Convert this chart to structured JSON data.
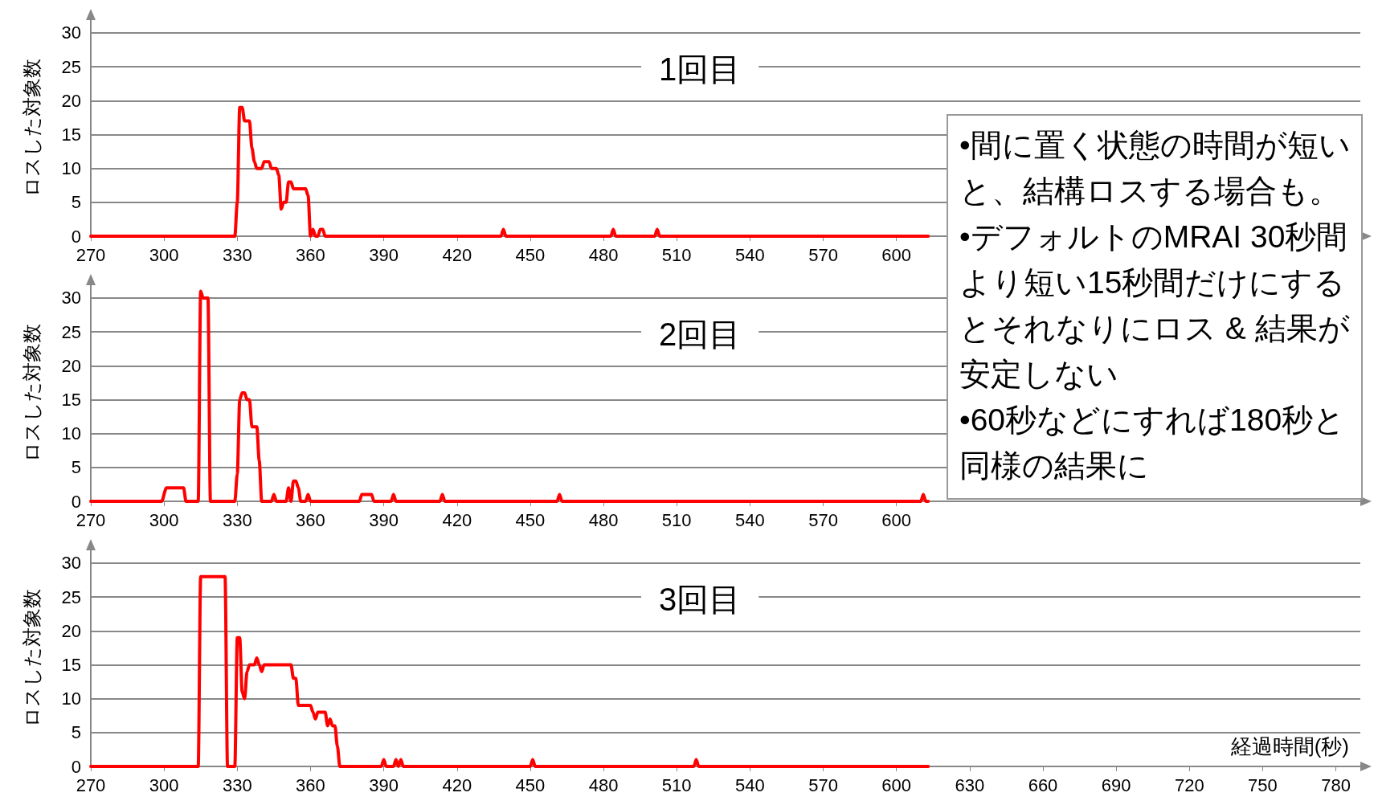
{
  "chart_data": [
    {
      "type": "line",
      "title": "1回目",
      "ylabel": "ロスした対象数",
      "color": "#ff0000",
      "marker": "none",
      "line_style": "solid",
      "grid": "y",
      "x": [
        270,
        329,
        330,
        331,
        332,
        333,
        335,
        336,
        337,
        338,
        340,
        341,
        343,
        344,
        346,
        347,
        348,
        349,
        350,
        351,
        352,
        353,
        358,
        359,
        360,
        361,
        362,
        363,
        364,
        365,
        366,
        438,
        439,
        440,
        483,
        484,
        485,
        501,
        502,
        503,
        613
      ],
      "values": [
        0,
        0,
        5,
        19,
        19,
        17,
        17,
        13,
        11,
        10,
        10,
        11,
        11,
        10,
        10,
        9,
        4,
        5,
        5,
        8,
        8,
        7,
        7,
        6,
        0,
        1,
        0,
        0,
        1,
        1,
        0,
        0,
        1,
        0,
        0,
        1,
        0,
        0,
        1,
        0,
        0
      ],
      "xlim": [
        270,
        790
      ],
      "ylim": [
        0,
        32
      ],
      "xticks": [
        270,
        300,
        330,
        360,
        390,
        420,
        450,
        480,
        510,
        540,
        570,
        600
      ],
      "yticks": [
        0,
        5,
        10,
        15,
        20,
        25,
        30
      ],
      "annotations": [
        "•間に置く状態の時間が短いと、結構ロスする場合も。",
        "•デフォルトのMRAI 30秒間より短い15秒間だけにするとそれなりにロス & 結果が安定しない",
        "•60秒などにすれば180秒と同様の結果に"
      ]
    },
    {
      "type": "line",
      "title": "2回目",
      "ylabel": "ロスした対象数",
      "color": "#ff0000",
      "marker": "none",
      "line_style": "solid",
      "grid": "y",
      "x": [
        270,
        299,
        301,
        307,
        308,
        309,
        314,
        315,
        316,
        318,
        319,
        329,
        330,
        331,
        332,
        333,
        334,
        335,
        336,
        338,
        339,
        340,
        344,
        345,
        346,
        350,
        351,
        352,
        353,
        354,
        355,
        356,
        358,
        359,
        360,
        380,
        381,
        385,
        386,
        393,
        394,
        395,
        413,
        414,
        415,
        461,
        462,
        463,
        610,
        611,
        612,
        613
      ],
      "values": [
        0,
        0,
        2,
        2,
        2,
        0,
        0,
        31,
        30,
        30,
        0,
        0,
        4,
        15,
        16,
        16,
        15,
        15,
        11,
        11,
        6,
        0,
        0,
        1,
        0,
        0,
        2,
        0,
        3,
        3,
        2,
        0,
        0,
        1,
        0,
        0,
        1,
        1,
        0,
        0,
        1,
        0,
        0,
        1,
        0,
        0,
        1,
        0,
        0,
        1,
        0,
        0
      ],
      "xlim": [
        270,
        790
      ],
      "ylim": [
        0,
        32
      ],
      "xticks": [
        270,
        300,
        330,
        360,
        390,
        420,
        450,
        480,
        510,
        540,
        570,
        600
      ],
      "yticks": [
        0,
        5,
        10,
        15,
        20,
        25,
        30
      ]
    },
    {
      "type": "line",
      "title": "3回目",
      "ylabel": "ロスした対象数",
      "xlabel": "経過時間(秒)",
      "color": "#ff0000",
      "marker": "none",
      "line_style": "solid",
      "grid": "y",
      "x": [
        270,
        314,
        315,
        325,
        326,
        329,
        330,
        331,
        332,
        333,
        334,
        335,
        337,
        338,
        339,
        340,
        341,
        352,
        353,
        354,
        355,
        359,
        360,
        361,
        362,
        363,
        366,
        367,
        368,
        369,
        370,
        371,
        372,
        389,
        390,
        391,
        394,
        395,
        396,
        397,
        398,
        450,
        451,
        452,
        517,
        518,
        519,
        613
      ],
      "values": [
        0,
        0,
        28,
        28,
        0,
        0,
        19,
        19,
        11,
        10,
        14,
        15,
        15,
        16,
        15,
        14,
        15,
        15,
        13,
        13,
        9,
        9,
        9,
        8,
        7,
        8,
        8,
        6,
        7,
        6,
        6,
        3,
        0,
        0,
        1,
        0,
        0,
        1,
        0,
        1,
        0,
        0,
        1,
        0,
        0,
        1,
        0,
        0
      ],
      "xlim": [
        270,
        790
      ],
      "ylim": [
        0,
        32
      ],
      "xticks": [
        270,
        300,
        330,
        360,
        390,
        420,
        450,
        480,
        510,
        540,
        570,
        600,
        630,
        660,
        690,
        720,
        750,
        780
      ],
      "yticks": [
        0,
        5,
        10,
        15,
        20,
        25,
        30
      ]
    }
  ]
}
